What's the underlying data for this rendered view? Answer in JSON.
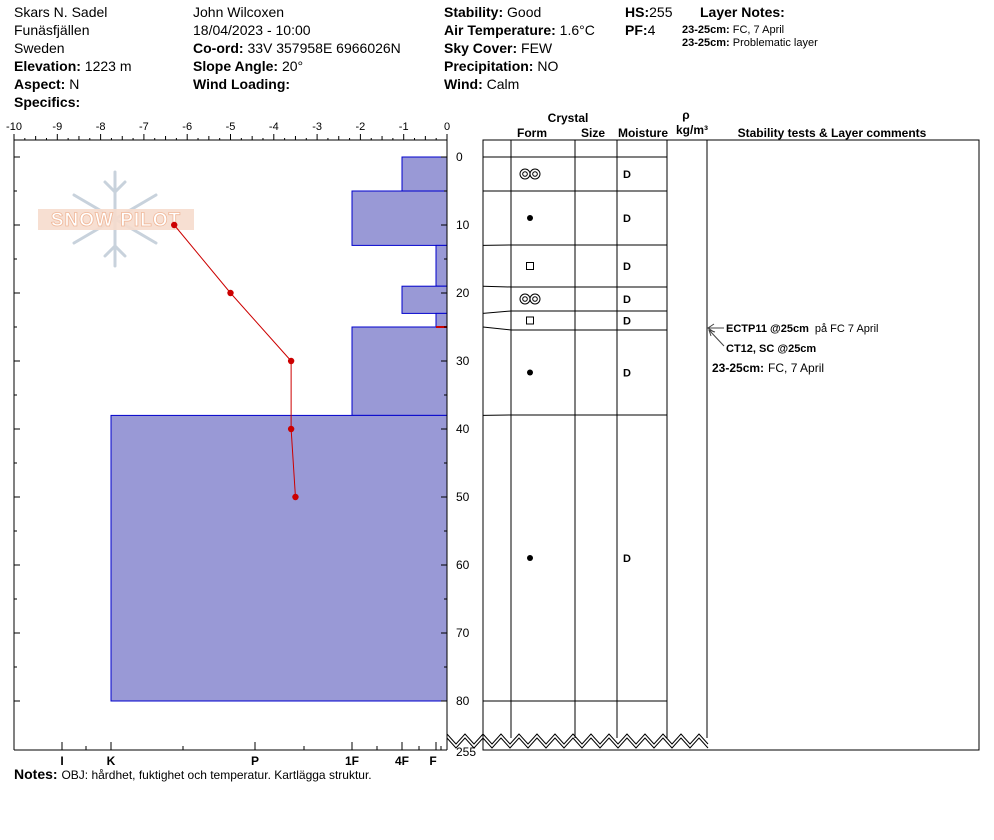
{
  "header": {
    "location": "Skars N. Sadel",
    "region": "Funäsfjällen",
    "country": "Sweden",
    "elevation_label": "Elevation:",
    "elevation": "1223 m",
    "aspect_label": "Aspect:",
    "aspect": "N",
    "specifics_label": "Specifics:",
    "observer": "John Wilcoxen",
    "datetime": "18/04/2023 - 10:00",
    "coord_label": "Co-ord:",
    "coord": "33V 357958E 6966026N",
    "slope_label": "Slope Angle:",
    "slope": "20°",
    "wind_loading_label": "Wind Loading:",
    "stability_label": "Stability:",
    "stability": "Good",
    "air_temp_label": "Air Temperature:",
    "air_temp": "1.6°C",
    "sky_label": "Sky Cover:",
    "sky": "FEW",
    "precip_label": "Precipitation:",
    "precip": "NO",
    "wind_label": "Wind:",
    "wind": "Calm",
    "hs_label": "HS:",
    "hs": "255",
    "pf_label": "PF:",
    "pf": "4",
    "layer_notes_title": "Layer Notes:",
    "layer_notes": [
      {
        "range": "23-25cm:",
        "text": "FC, 7 April"
      },
      {
        "range": "23-25cm:",
        "text": "Problematic layer"
      }
    ]
  },
  "watermark": "SNOW PILOT",
  "notes": {
    "label": "Notes:",
    "text": "OBJ: hårdhet, fuktighet och temperatur. Kartlägga struktur."
  },
  "columns": {
    "crystal": "Crystal",
    "form": "Form",
    "size": "Size",
    "moisture": "Moisture",
    "rho": "ρ",
    "density_unit": "kg/m³",
    "comments": "Stability tests & Layer comments"
  },
  "stability_tests": [
    {
      "test": "ECTP11 @25cm",
      "comment": "på FC 7 April"
    },
    {
      "test": "CT12, SC @25cm",
      "comment": ""
    }
  ],
  "layer_comment": {
    "range": "23-25cm:",
    "text": "FC, 7 April"
  },
  "colors": {
    "hardness_fill": "#9999d6",
    "hardness_stroke": "#0000cc",
    "temperature": "#cc0000"
  },
  "chart_data": {
    "type": "snow-profile",
    "temperature_axis": {
      "ticks": [
        -10,
        -9,
        -8,
        -7,
        -6,
        -5,
        -4,
        -3,
        -2,
        -1,
        0
      ],
      "range": [
        -10,
        0
      ]
    },
    "depth_axis": {
      "ticks": [
        0,
        10,
        20,
        30,
        40,
        50,
        60,
        70,
        80
      ],
      "range": [
        0,
        80
      ],
      "bottom_label": "255",
      "axis_break": true
    },
    "hardness_axis": {
      "labels": [
        "I",
        "K",
        "P",
        "1F",
        "4F",
        "F"
      ]
    },
    "hardness_layers": [
      {
        "top": 0,
        "bottom": 5,
        "hardness": "4F"
      },
      {
        "top": 5,
        "bottom": 13,
        "hardness": "1F"
      },
      {
        "top": 13,
        "bottom": 19,
        "hardness": "F"
      },
      {
        "top": 19,
        "bottom": 23,
        "hardness": "4F"
      },
      {
        "top": 23,
        "bottom": 25,
        "hardness": "F"
      },
      {
        "top": 25,
        "bottom": 38,
        "hardness": "1F"
      },
      {
        "top": 38,
        "bottom": 80,
        "hardness": "K"
      }
    ],
    "temperature_profile": [
      {
        "depth": 10,
        "temp": -6.3
      },
      {
        "depth": 20,
        "temp": -5.0
      },
      {
        "depth": 30,
        "temp": -3.6
      },
      {
        "depth": 40,
        "temp": -3.6
      },
      {
        "depth": 50,
        "temp": -3.5
      }
    ],
    "layers": [
      {
        "top": 0,
        "bottom": 5,
        "form": "faceted-rounded",
        "moisture": "D"
      },
      {
        "top": 5,
        "bottom": 13,
        "form": "rounded",
        "moisture": "D"
      },
      {
        "top": 13,
        "bottom": 19,
        "form": "faceted",
        "moisture": "D"
      },
      {
        "top": 19,
        "bottom": 23,
        "form": "faceted-rounded",
        "moisture": "D"
      },
      {
        "top": 23,
        "bottom": 25,
        "form": "faceted",
        "moisture": "D"
      },
      {
        "top": 25,
        "bottom": 38,
        "form": "rounded",
        "moisture": "D"
      },
      {
        "top": 38,
        "bottom": 80,
        "form": "rounded",
        "moisture": "D"
      }
    ]
  }
}
